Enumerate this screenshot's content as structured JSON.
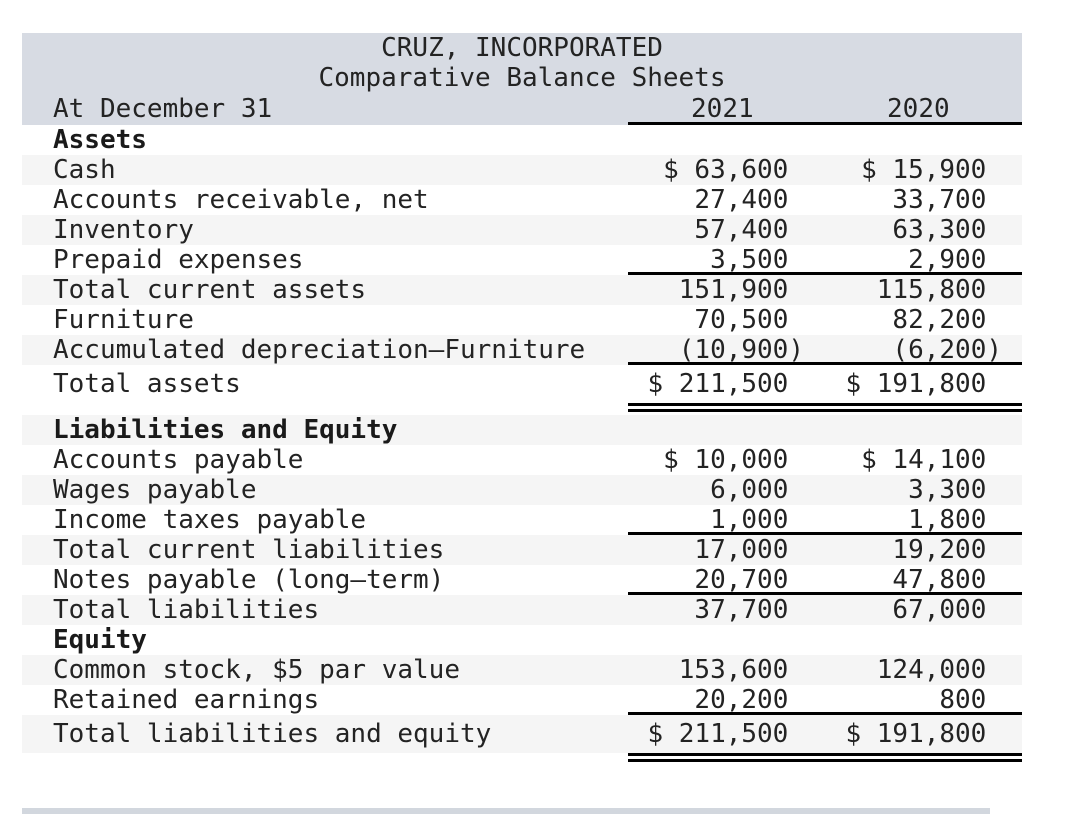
{
  "title": {
    "line1": "CRUZ, INCORPORATED",
    "line2": "Comparative Balance Sheets"
  },
  "header": {
    "label": "At December 31",
    "col1": "2021",
    "col2": "2020"
  },
  "rows": [
    {
      "label": "Assets",
      "v2021": "",
      "v2020": ""
    },
    {
      "label": "Cash",
      "v2021": "$ 63,600",
      "v2020": "$ 15,900"
    },
    {
      "label": "Accounts receivable, net",
      "v2021": "27,400",
      "v2020": "33,700"
    },
    {
      "label": "Inventory",
      "v2021": "57,400",
      "v2020": "63,300"
    },
    {
      "label": "Prepaid expenses",
      "v2021": "3,500",
      "v2020": "2,900"
    },
    {
      "label": "Total current assets",
      "v2021": "151,900",
      "v2020": "115,800"
    },
    {
      "label": "Furniture",
      "v2021": "70,500",
      "v2020": "82,200"
    },
    {
      "label": "Accumulated depreciation–Furniture",
      "v2021": "(10,900)",
      "v2020": "(6,200)"
    },
    {
      "label": "Total assets",
      "v2021": "$ 211,500",
      "v2020": "$ 191,800"
    },
    {
      "label": "Liabilities and Equity",
      "v2021": "",
      "v2020": ""
    },
    {
      "label": "Accounts payable",
      "v2021": "$ 10,000",
      "v2020": "$ 14,100"
    },
    {
      "label": "Wages payable",
      "v2021": "6,000",
      "v2020": "3,300"
    },
    {
      "label": "Income taxes payable",
      "v2021": "1,000",
      "v2020": "1,800"
    },
    {
      "label": "Total current liabilities",
      "v2021": "17,000",
      "v2020": "19,200"
    },
    {
      "label": "Notes payable (long–term)",
      "v2021": "20,700",
      "v2020": "47,800"
    },
    {
      "label": "Total liabilities",
      "v2021": "37,700",
      "v2020": "67,000"
    },
    {
      "label": "Equity",
      "v2021": "",
      "v2020": ""
    },
    {
      "label": "Common stock, $5 par value",
      "v2021": "153,600",
      "v2020": "124,000"
    },
    {
      "label": "Retained earnings",
      "v2021": "20,200",
      "v2020": "800"
    },
    {
      "label": "Total liabilities and equity",
      "v2021": "$ 211,500",
      "v2020": "$ 191,800"
    }
  ],
  "colors": {
    "header_bg": "#d7dbe3",
    "stripe": "#f5f5f5",
    "rule": "#000000",
    "text": "#232323",
    "text_bold": "#1a1a1a",
    "edge": "#d2d7de"
  }
}
